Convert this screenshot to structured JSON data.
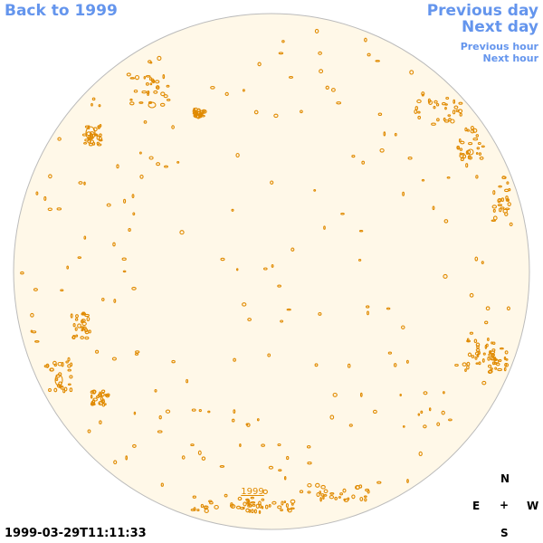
{
  "nav": {
    "back_label": "Back to 1999",
    "prev_day_label": "Previous day",
    "next_day_label": "Next day",
    "prev_hour_label": "Previous hour",
    "next_hour_label": "Next hour"
  },
  "disk": {
    "year_label": "1999",
    "fill_color": "#fff8e8",
    "edge_color": "#bbbbbb",
    "contour_color": "#e08a00"
  },
  "timestamp": "1999-03-29T11:11:33",
  "compass": {
    "north": "N",
    "east": "E",
    "center": "+",
    "west": "W",
    "south": "S"
  }
}
